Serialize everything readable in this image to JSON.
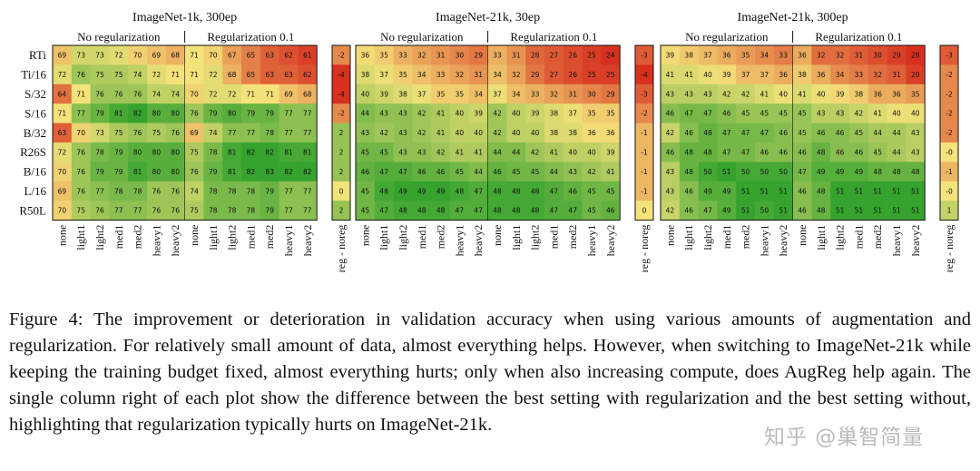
{
  "chart_data": {
    "type": "heatmap",
    "row_labels": [
      "RTi",
      "Ti/16",
      "S/32",
      "S/16",
      "B/32",
      "R26S",
      "B/16",
      "L/16",
      "R50L"
    ],
    "col_labels": [
      "none",
      "light1",
      "light2",
      "med1",
      "med2",
      "heavy1",
      "heavy2"
    ],
    "diff_col_label": "reg - noreg",
    "group_labels": [
      "No regularization",
      "Regularization 0.1"
    ],
    "colorscale": {
      "low": "#d7301f",
      "mid": "#f4e27a",
      "high": "#35a32e"
    },
    "panels": [
      {
        "title": "ImageNet-1k, 300ep",
        "vmin": 60,
        "vmax": 82,
        "no_reg": [
          [
            69,
            73,
            73,
            72,
            70,
            69,
            68
          ],
          [
            72,
            76,
            75,
            75,
            74,
            72,
            71
          ],
          [
            64,
            71,
            76,
            76,
            76,
            74,
            74
          ],
          [
            71,
            77,
            79,
            81,
            82,
            80,
            80
          ],
          [
            63,
            70,
            73,
            75,
            76,
            75,
            76
          ],
          [
            72,
            76,
            78,
            79,
            80,
            80,
            80
          ],
          [
            70,
            76,
            79,
            79,
            81,
            80,
            80
          ],
          [
            69,
            76,
            77,
            78,
            78,
            76,
            76
          ],
          [
            70,
            75,
            76,
            77,
            77,
            76,
            76
          ]
        ],
        "reg": [
          [
            71,
            70,
            67,
            65,
            63,
            62,
            61
          ],
          [
            71,
            72,
            68,
            65,
            63,
            63,
            62
          ],
          [
            70,
            72,
            72,
            71,
            71,
            69,
            68
          ],
          [
            76,
            79,
            80,
            79,
            79,
            77,
            77
          ],
          [
            69,
            74,
            77,
            77,
            78,
            77,
            77
          ],
          [
            75,
            78,
            81,
            82,
            82,
            81,
            81
          ],
          [
            76,
            79,
            81,
            82,
            83,
            82,
            82
          ],
          [
            74,
            78,
            78,
            78,
            79,
            77,
            77
          ],
          [
            75,
            78,
            78,
            78,
            79,
            77,
            77
          ]
        ],
        "diff": [
          "-2",
          "-4",
          "-4",
          "-2",
          "2",
          "2",
          "2",
          "0",
          "2"
        ],
        "diff_vals": [
          -2,
          -4,
          -4,
          -2,
          2,
          2,
          2,
          0,
          2
        ]
      },
      {
        "title": "ImageNet-21k, 30ep",
        "vmin": 24,
        "vmax": 49,
        "no_reg": [
          [
            36,
            35,
            33,
            32,
            31,
            30,
            29
          ],
          [
            38,
            37,
            35,
            34,
            33,
            32,
            31
          ],
          [
            40,
            39,
            38,
            37,
            35,
            35,
            34
          ],
          [
            44,
            43,
            43,
            42,
            41,
            40,
            39
          ],
          [
            43,
            42,
            43,
            42,
            41,
            40,
            40
          ],
          [
            45,
            45,
            43,
            43,
            42,
            41,
            41
          ],
          [
            46,
            47,
            47,
            46,
            46,
            45,
            44
          ],
          [
            45,
            48,
            49,
            49,
            49,
            48,
            47
          ],
          [
            45,
            47,
            48,
            48,
            48,
            47,
            47
          ]
        ],
        "reg": [
          [
            33,
            31,
            28,
            27,
            26,
            25,
            24
          ],
          [
            34,
            32,
            29,
            27,
            26,
            25,
            25
          ],
          [
            37,
            34,
            33,
            32,
            31,
            30,
            29
          ],
          [
            42,
            40,
            39,
            38,
            37,
            35,
            35
          ],
          [
            42,
            40,
            40,
            38,
            38,
            36,
            36
          ],
          [
            44,
            44,
            42,
            41,
            40,
            40,
            39
          ],
          [
            46,
            45,
            45,
            44,
            43,
            42,
            41
          ],
          [
            48,
            48,
            48,
            47,
            46,
            45,
            45
          ],
          [
            48,
            48,
            48,
            47,
            47,
            45,
            46
          ]
        ],
        "diff": [
          "-3",
          "-4",
          "-3",
          "-2",
          "-1",
          "-1",
          "-1",
          "-1",
          "0"
        ],
        "diff_vals": [
          -3,
          -4,
          -3,
          -2,
          -1,
          -1,
          -1,
          -1,
          0
        ]
      },
      {
        "title": "ImageNet-21k, 300ep",
        "vmin": 28,
        "vmax": 51,
        "no_reg": [
          [
            39,
            38,
            37,
            36,
            35,
            34,
            33
          ],
          [
            41,
            41,
            40,
            39,
            37,
            37,
            36
          ],
          [
            43,
            43,
            43,
            42,
            42,
            41,
            40
          ],
          [
            46,
            47,
            47,
            46,
            45,
            45,
            45
          ],
          [
            42,
            46,
            48,
            47,
            47,
            47,
            46
          ],
          [
            46,
            48,
            48,
            47,
            47,
            46,
            46
          ],
          [
            43,
            48,
            50,
            51,
            50,
            50,
            50
          ],
          [
            43,
            46,
            49,
            49,
            51,
            51,
            51
          ],
          [
            42,
            46,
            47,
            49,
            51,
            50,
            51
          ]
        ],
        "reg": [
          [
            36,
            32,
            32,
            31,
            30,
            29,
            28
          ],
          [
            38,
            36,
            34,
            33,
            32,
            31,
            29
          ],
          [
            41,
            40,
            39,
            38,
            36,
            36,
            35
          ],
          [
            45,
            43,
            43,
            42,
            41,
            40,
            40
          ],
          [
            45,
            46,
            46,
            45,
            44,
            44,
            43
          ],
          [
            46,
            48,
            46,
            46,
            45,
            44,
            43
          ],
          [
            47,
            49,
            49,
            49,
            48,
            48,
            48
          ],
          [
            46,
            48,
            51,
            51,
            51,
            51,
            51
          ],
          [
            46,
            48,
            51,
            51,
            51,
            51,
            51
          ]
        ],
        "diff": [
          "-3",
          "-2",
          "-2",
          "-2",
          "-2",
          "-0",
          "-1",
          "-0",
          "1"
        ],
        "diff_vals": [
          -3,
          -2,
          -2,
          -2,
          -2,
          0,
          -1,
          0,
          1
        ]
      }
    ]
  },
  "caption": "Figure 4: The improvement or deterioration in validation accuracy when using various amounts of augmentation and regularization. For relatively small amount of data, almost everything helps. However, when switching to ImageNet-21k while keeping the training budget fixed, almost everything hurts; only when also increasing compute, does AugReg help again. The single column right of each plot show the difference between the best setting with regularization and the best setting without, highlighting that regularization typically hurts on ImageNet-21k.",
  "watermark": "知乎 @巢智简量"
}
